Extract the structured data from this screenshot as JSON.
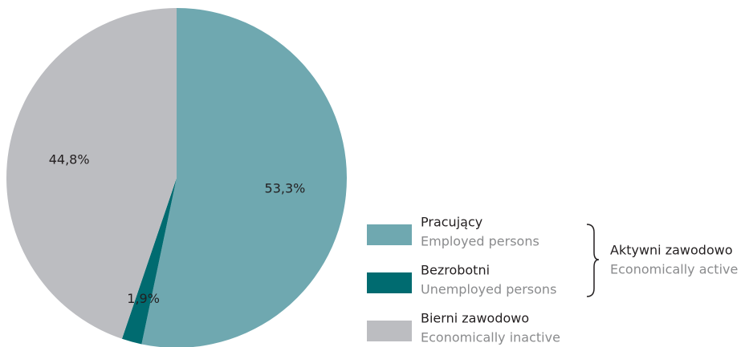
{
  "chart_data": {
    "type": "pie",
    "categories": [
      "Pracujący",
      "Bezrobotni",
      "Bierni zawodowo"
    ],
    "category_subtitles": [
      "Employed persons",
      "Unemployed persons",
      "Economically inactive"
    ],
    "values": [
      53.3,
      1.9,
      44.8
    ],
    "value_labels": [
      "53,3%",
      "1,9%",
      "44,8%"
    ],
    "colors": [
      "#6fa8b0",
      "#006b70",
      "#bcbdc1"
    ],
    "group": {
      "label": "Aktywni zawodowo",
      "sublabel": "Economically active"
    }
  }
}
